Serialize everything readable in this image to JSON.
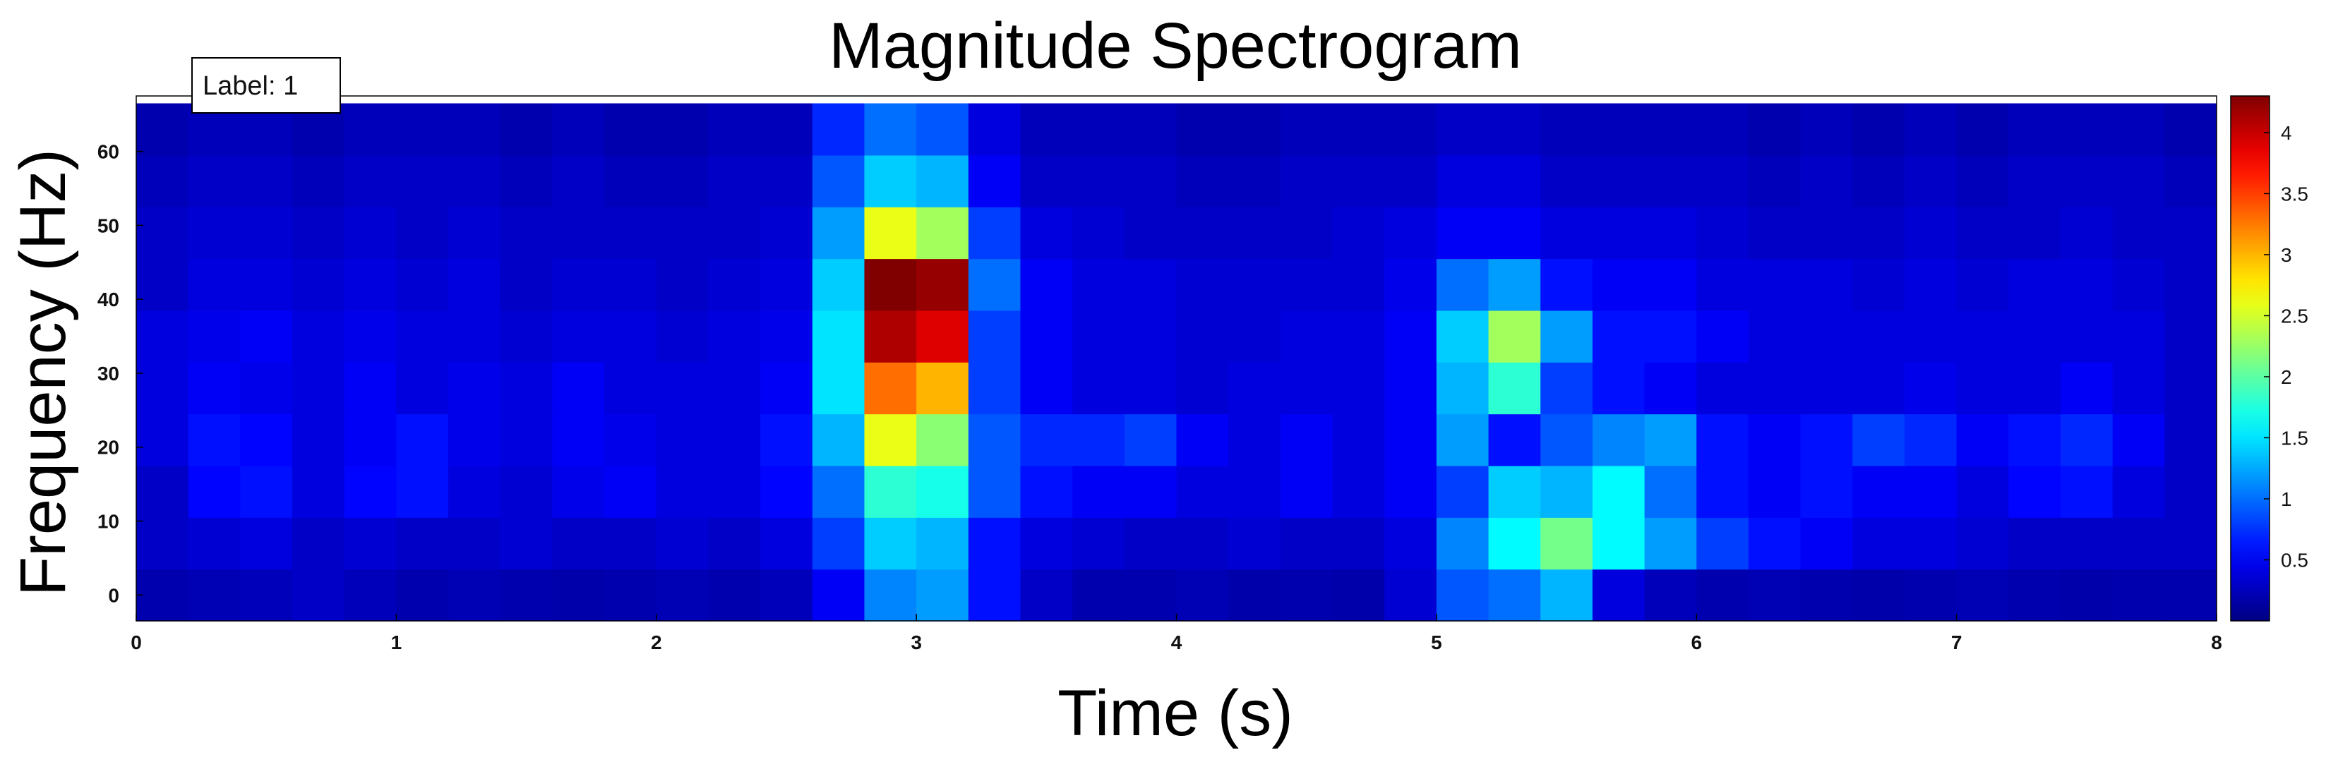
{
  "chart_data": {
    "type": "heatmap",
    "title": "Magnitude Spectrogram",
    "xlabel": "Time (s)",
    "ylabel": "Frequency (Hz)",
    "xlim": [
      0,
      8
    ],
    "ylim": [
      -3.5,
      67.5
    ],
    "x_ticks": [
      "0",
      "1",
      "2",
      "3",
      "4",
      "5",
      "6",
      "7",
      "8"
    ],
    "y_ticks": [
      "0",
      "10",
      "20",
      "30",
      "40",
      "50",
      "60"
    ],
    "colorbar": {
      "ticks": [
        "0.5",
        "1",
        "1.5",
        "2",
        "2.5",
        "3",
        "3.5",
        "4"
      ],
      "range": [
        0,
        4.3
      ],
      "colormap": "jet"
    },
    "annotation": "Label: 1",
    "time_start": 0.1,
    "time_step": 0.2,
    "frequencies": [
      0,
      7,
      14,
      21,
      28,
      35,
      42,
      49,
      56,
      63
    ],
    "values": [
      [
        0.2,
        0.22,
        0.25,
        0.3,
        0.25,
        0.2,
        0.22,
        0.2,
        0.18,
        0.2,
        0.22,
        0.2,
        0.25,
        0.5,
        1.1,
        1.2,
        0.6,
        0.3,
        0.2,
        0.2,
        0.22,
        0.18,
        0.2,
        0.18,
        0.35,
        0.9,
        1.0,
        1.3,
        0.4,
        0.25,
        0.2,
        0.22,
        0.2,
        0.18,
        0.2,
        0.22,
        0.2,
        0.18,
        0.2,
        0.2
      ],
      [
        0.3,
        0.35,
        0.4,
        0.3,
        0.35,
        0.3,
        0.3,
        0.35,
        0.3,
        0.3,
        0.35,
        0.3,
        0.4,
        0.8,
        1.4,
        1.3,
        0.6,
        0.4,
        0.35,
        0.3,
        0.3,
        0.35,
        0.3,
        0.3,
        0.4,
        1.1,
        1.6,
        2.1,
        1.6,
        1.2,
        0.8,
        0.6,
        0.5,
        0.4,
        0.4,
        0.35,
        0.3,
        0.3,
        0.3,
        0.3
      ],
      [
        0.3,
        0.55,
        0.6,
        0.4,
        0.55,
        0.6,
        0.4,
        0.35,
        0.45,
        0.5,
        0.4,
        0.4,
        0.55,
        1.0,
        1.8,
        1.7,
        0.9,
        0.6,
        0.5,
        0.5,
        0.4,
        0.4,
        0.5,
        0.4,
        0.5,
        0.8,
        1.4,
        1.3,
        1.6,
        1.0,
        0.6,
        0.5,
        0.6,
        0.5,
        0.5,
        0.4,
        0.55,
        0.6,
        0.4,
        0.3
      ],
      [
        0.4,
        0.6,
        0.55,
        0.4,
        0.5,
        0.6,
        0.45,
        0.4,
        0.5,
        0.45,
        0.4,
        0.4,
        0.6,
        1.3,
        2.6,
        2.2,
        0.9,
        0.7,
        0.7,
        0.8,
        0.5,
        0.4,
        0.5,
        0.4,
        0.5,
        1.2,
        0.6,
        0.9,
        1.1,
        1.2,
        0.6,
        0.5,
        0.6,
        0.8,
        0.7,
        0.5,
        0.6,
        0.7,
        0.5,
        0.3
      ],
      [
        0.4,
        0.5,
        0.45,
        0.4,
        0.5,
        0.4,
        0.45,
        0.4,
        0.5,
        0.4,
        0.4,
        0.4,
        0.5,
        1.5,
        3.3,
        3.0,
        0.8,
        0.5,
        0.4,
        0.4,
        0.35,
        0.4,
        0.4,
        0.4,
        0.5,
        1.3,
        1.8,
        0.8,
        0.6,
        0.5,
        0.4,
        0.4,
        0.4,
        0.4,
        0.45,
        0.4,
        0.4,
        0.5,
        0.4,
        0.3
      ],
      [
        0.4,
        0.45,
        0.5,
        0.4,
        0.45,
        0.4,
        0.4,
        0.35,
        0.4,
        0.4,
        0.35,
        0.4,
        0.45,
        1.5,
        4.1,
        3.9,
        0.8,
        0.5,
        0.4,
        0.4,
        0.35,
        0.35,
        0.4,
        0.4,
        0.5,
        1.4,
        2.3,
        1.2,
        0.6,
        0.6,
        0.5,
        0.4,
        0.4,
        0.4,
        0.4,
        0.4,
        0.4,
        0.4,
        0.4,
        0.3
      ],
      [
        0.3,
        0.4,
        0.4,
        0.35,
        0.4,
        0.35,
        0.4,
        0.3,
        0.35,
        0.35,
        0.3,
        0.35,
        0.4,
        1.4,
        4.3,
        4.2,
        1.0,
        0.5,
        0.4,
        0.4,
        0.35,
        0.35,
        0.35,
        0.35,
        0.45,
        1.0,
        1.2,
        0.6,
        0.5,
        0.5,
        0.4,
        0.4,
        0.4,
        0.35,
        0.4,
        0.35,
        0.4,
        0.4,
        0.35,
        0.3
      ],
      [
        0.3,
        0.35,
        0.35,
        0.3,
        0.35,
        0.3,
        0.35,
        0.3,
        0.3,
        0.3,
        0.3,
        0.3,
        0.35,
        1.2,
        2.6,
        2.3,
        0.8,
        0.4,
        0.35,
        0.3,
        0.3,
        0.3,
        0.3,
        0.35,
        0.4,
        0.5,
        0.5,
        0.4,
        0.4,
        0.4,
        0.35,
        0.3,
        0.3,
        0.3,
        0.35,
        0.3,
        0.3,
        0.35,
        0.3,
        0.3
      ],
      [
        0.25,
        0.3,
        0.3,
        0.25,
        0.3,
        0.3,
        0.3,
        0.25,
        0.3,
        0.25,
        0.25,
        0.3,
        0.3,
        0.9,
        1.4,
        1.3,
        0.5,
        0.3,
        0.3,
        0.3,
        0.25,
        0.25,
        0.3,
        0.3,
        0.3,
        0.4,
        0.4,
        0.3,
        0.3,
        0.3,
        0.3,
        0.25,
        0.3,
        0.25,
        0.3,
        0.25,
        0.3,
        0.3,
        0.3,
        0.25
      ],
      [
        0.2,
        0.25,
        0.25,
        0.2,
        0.25,
        0.25,
        0.25,
        0.2,
        0.25,
        0.2,
        0.2,
        0.25,
        0.25,
        0.7,
        1.0,
        0.9,
        0.4,
        0.25,
        0.25,
        0.25,
        0.2,
        0.2,
        0.25,
        0.25,
        0.25,
        0.3,
        0.3,
        0.25,
        0.25,
        0.25,
        0.25,
        0.2,
        0.25,
        0.2,
        0.25,
        0.2,
        0.25,
        0.25,
        0.25,
        0.2
      ]
    ]
  }
}
